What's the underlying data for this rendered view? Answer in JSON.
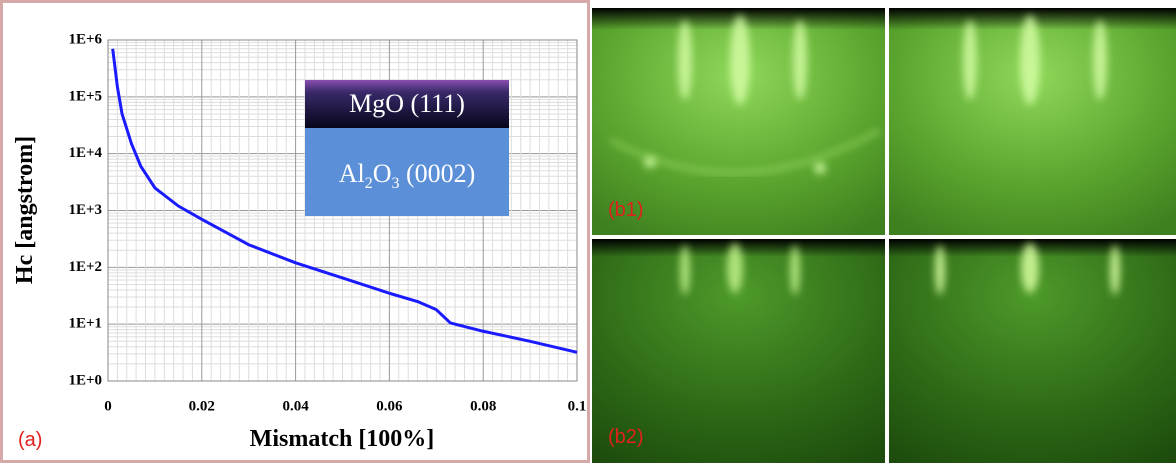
{
  "chart_data": {
    "type": "line",
    "x_label": "Mismatch [100%]",
    "y_label": "Hc [angstrom]",
    "x": [
      0.001,
      0.002,
      0.003,
      0.005,
      0.007,
      0.01,
      0.015,
      0.02,
      0.03,
      0.04,
      0.05,
      0.06,
      0.066,
      0.07,
      0.073,
      0.08,
      0.09,
      0.1
    ],
    "values": [
      700000,
      150000,
      50000,
      15000,
      6000,
      2500,
      1200,
      700,
      250,
      120,
      65,
      35,
      25,
      18,
      10.5,
      7.5,
      5,
      3.2
    ],
    "color": "#1a1aff",
    "xlim": [
      0,
      0.1
    ],
    "xticks": [
      0,
      0.02,
      0.04,
      0.06,
      0.08,
      0.1
    ],
    "ylim": [
      1,
      1000000
    ],
    "yticks": [
      {
        "value": 1,
        "label": "1E+0"
      },
      {
        "value": 10,
        "label": "1E+1"
      },
      {
        "value": 100,
        "label": "1E+2"
      },
      {
        "value": 1000,
        "label": "1E+3"
      },
      {
        "value": 10000,
        "label": "1E+4"
      },
      {
        "value": 100000,
        "label": "1E+5"
      },
      {
        "value": 1000000,
        "label": "1E+6"
      }
    ],
    "log_y": true,
    "grid": true,
    "inset": {
      "top_label": "MgO (111)",
      "bottom_label": [
        "Al",
        "2",
        "O",
        "3",
        " (0002)"
      ]
    },
    "panel_label": "(a)"
  },
  "images": {
    "label_1": "(b1)",
    "label_2": "(b2)"
  }
}
